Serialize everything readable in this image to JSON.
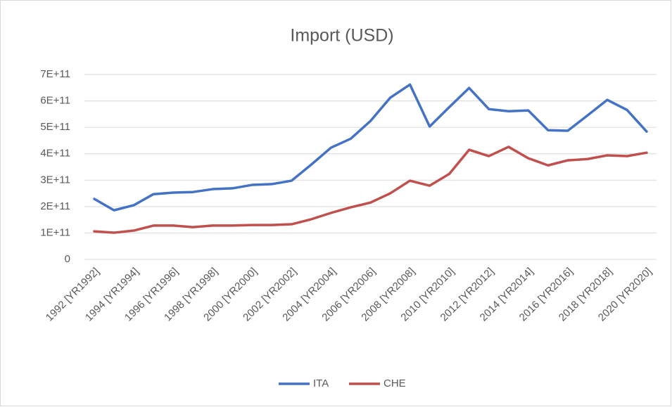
{
  "chart_data": {
    "type": "line",
    "title": "Import (USD)",
    "categories": [
      "1992 [YR1992]",
      null,
      "1994 [YR1994]",
      null,
      "1996 [YR1996]",
      null,
      "1998 [YR1998]",
      null,
      "2000 [YR2000]",
      null,
      "2002 [YR2002]",
      null,
      "2004 [YR2004]",
      null,
      "2006 [YR2006]",
      null,
      "2008 [YR2008]",
      null,
      "2010 [YR2010]",
      null,
      "2012 [YR2012]",
      null,
      "2014 [YR2014]",
      null,
      "2016 [YR2016]",
      null,
      "2018 [YR2018]",
      null,
      "2020 [YR2020]"
    ],
    "series": [
      {
        "name": "ITA",
        "color": "#4472c4",
        "values": [
          229000000000,
          186000000000,
          205000000000,
          247000000000,
          253000000000,
          255000000000,
          266000000000,
          269000000000,
          282000000000,
          285000000000,
          298000000000,
          359000000000,
          423000000000,
          457000000000,
          524000000000,
          612000000000,
          662000000000,
          503000000000,
          577000000000,
          649000000000,
          569000000000,
          561000000000,
          564000000000,
          489000000000,
          487000000000,
          545000000000,
          604000000000,
          566000000000,
          484000000000
        ]
      },
      {
        "name": "CHE",
        "color": "#c0504d",
        "values": [
          106000000000,
          101000000000,
          109000000000,
          128000000000,
          128000000000,
          122000000000,
          128000000000,
          128000000000,
          130000000000,
          130000000000,
          133000000000,
          152000000000,
          176000000000,
          197000000000,
          215000000000,
          250000000000,
          298000000000,
          279000000000,
          324000000000,
          415000000000,
          391000000000,
          426000000000,
          383000000000,
          356000000000,
          375000000000,
          380000000000,
          394000000000,
          391000000000,
          404000000000
        ]
      }
    ],
    "ylim": [
      0,
      700000000000
    ],
    "yticks": [
      0,
      {
        "value": 100000000000,
        "label": "1E+11"
      },
      {
        "value": 200000000000,
        "label": "2E+11"
      },
      {
        "value": 300000000000,
        "label": "3E+11"
      },
      {
        "value": 400000000000,
        "label": "4E+11"
      },
      {
        "value": 500000000000,
        "label": "5E+11"
      },
      {
        "value": 600000000000,
        "label": "6E+11"
      },
      {
        "value": 700000000000,
        "label": "7E+11"
      }
    ],
    "grid": true,
    "legend": "bottom"
  }
}
